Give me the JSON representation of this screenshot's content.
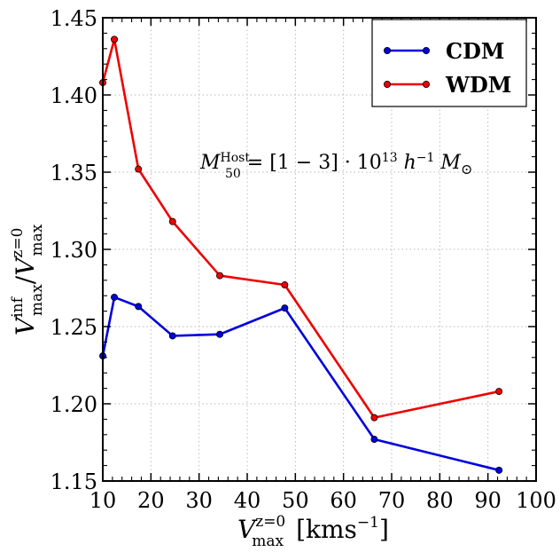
{
  "chart_data": {
    "type": "line",
    "title": "",
    "xlabel": {
      "main": "V",
      "sup": "z=0",
      "sub": "max",
      "unit": "[kms",
      "unit_sup": "−1",
      "unit_close": "]"
    },
    "ylabel": {
      "main1": "V",
      "sup1": "inf",
      "sub1": "max",
      "slash": "/",
      "main2": "V",
      "sup2": "z=0",
      "sub2": "max"
    },
    "xlim": [
      10,
      100
    ],
    "ylim": [
      1.15,
      1.45
    ],
    "xticks": [
      10,
      20,
      30,
      40,
      50,
      60,
      70,
      80,
      90,
      100
    ],
    "xtick_labels": [
      "10",
      "20",
      "30",
      "40",
      "50",
      "60",
      "70",
      "80",
      "90",
      "100"
    ],
    "yticks": [
      1.15,
      1.2,
      1.25,
      1.3,
      1.35,
      1.4,
      1.45
    ],
    "ytick_labels": [
      "1.15",
      "1.20",
      "1.25",
      "1.30",
      "1.35",
      "1.40",
      "1.45"
    ],
    "grid": true,
    "legend_position": "top-right",
    "annotation": {
      "main": "M",
      "sup": "Host",
      "sub": "50",
      "rest": " = [1 − 3] · 10",
      "exp": "13",
      "h": " h",
      "h_exp": "−1",
      "m": " M",
      "m_sub": "⊙"
    },
    "series": [
      {
        "name": "CDM",
        "color": "#0000dd",
        "x": [
          10.0,
          12.4,
          17.4,
          24.5,
          34.3,
          47.8,
          66.4,
          92.3
        ],
        "y": [
          1.231,
          1.269,
          1.263,
          1.244,
          1.245,
          1.262,
          1.177,
          1.157
        ]
      },
      {
        "name": "WDM",
        "color": "#ee0000",
        "x": [
          10.0,
          12.4,
          17.4,
          24.5,
          34.3,
          47.8,
          66.4,
          92.3
        ],
        "y": [
          1.408,
          1.436,
          1.352,
          1.318,
          1.283,
          1.277,
          1.191,
          1.208
        ]
      }
    ]
  }
}
